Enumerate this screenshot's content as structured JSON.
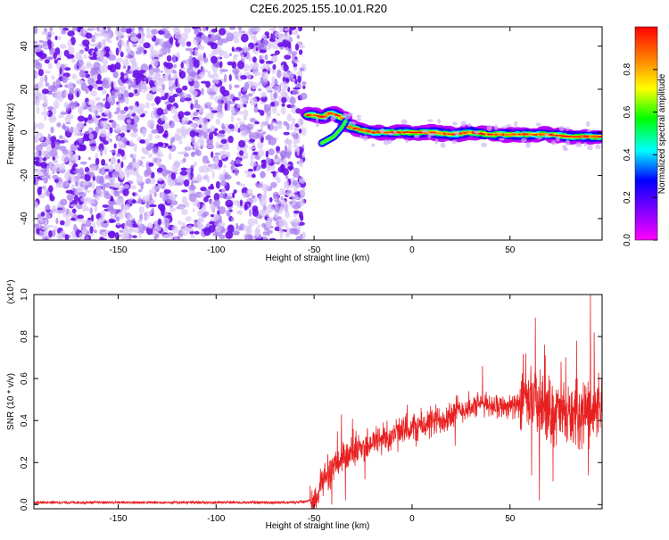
{
  "title": "C2E6.2025.155.10.01.R20",
  "chart_data": [
    {
      "type": "heatmap",
      "xlabel": "Height of straight line (km)",
      "ylabel": "Frequency (Hz)",
      "xlim": [
        -193,
        97
      ],
      "ylim": [
        -50,
        49
      ],
      "xticks": [
        -150,
        -100,
        -50,
        0,
        50
      ],
      "yticks": [
        -40,
        -20,
        0,
        20,
        40
      ],
      "colorbar": {
        "label": "Normalized spectral amplitude",
        "ticks": [
          "0.0",
          "0.2",
          "0.4",
          "0.6",
          "0.8"
        ],
        "range": [
          0,
          1
        ],
        "colors": [
          "#ff00ff",
          "#8000ff",
          "#0000ff",
          "#00ffff",
          "#00ff00",
          "#ffff00",
          "#ff8000",
          "#ff0000"
        ]
      },
      "noise_region": {
        "x_range": [
          -193,
          -55
        ],
        "max_amplitude": 0.15
      },
      "signal_track": [
        {
          "x": -53,
          "y": 8
        },
        {
          "x": -50,
          "y": 8
        },
        {
          "x": -45,
          "y": 7
        },
        {
          "x": -42,
          "y": 9
        },
        {
          "x": -38,
          "y": 8
        },
        {
          "x": -35,
          "y": 6
        },
        {
          "x": -33,
          "y": 3
        },
        {
          "x": -30,
          "y": 2
        },
        {
          "x": -25,
          "y": 1
        },
        {
          "x": -20,
          "y": 0
        },
        {
          "x": -10,
          "y": 0
        },
        {
          "x": 0,
          "y": 0
        },
        {
          "x": 10,
          "y": 0
        },
        {
          "x": 20,
          "y": -1
        },
        {
          "x": 30,
          "y": 0
        },
        {
          "x": 40,
          "y": -1
        },
        {
          "x": 50,
          "y": -1
        },
        {
          "x": 60,
          "y": -1
        },
        {
          "x": 70,
          "y": -1
        },
        {
          "x": 80,
          "y": -2
        },
        {
          "x": 90,
          "y": -2
        },
        {
          "x": 97,
          "y": -2
        }
      ],
      "secondary_track": [
        {
          "x": -46,
          "y": -5
        },
        {
          "x": -40,
          "y": -2
        },
        {
          "x": -36,
          "y": 2
        },
        {
          "x": -34,
          "y": 5
        }
      ]
    },
    {
      "type": "line",
      "xlabel": "Height of straight line (km)",
      "ylabel": "SNR (10 * v/v)",
      "multiplier": "(x10⁴)",
      "xlim": [
        -193,
        97
      ],
      "ylim": [
        -0.02,
        1.0
      ],
      "xticks": [
        -150,
        -100,
        -50,
        0,
        50
      ],
      "yticks": [
        "0.0",
        "0.2",
        "0.4",
        "0.6",
        "0.8",
        "1.0"
      ],
      "series_color": "#e82020",
      "profile": [
        {
          "x": -193,
          "y": 0.01
        },
        {
          "x": -60,
          "y": 0.01
        },
        {
          "x": -50,
          "y": 0.02
        },
        {
          "x": -45,
          "y": 0.12
        },
        {
          "x": -40,
          "y": 0.18
        },
        {
          "x": -35,
          "y": 0.22
        },
        {
          "x": -30,
          "y": 0.25
        },
        {
          "x": -20,
          "y": 0.3
        },
        {
          "x": -10,
          "y": 0.33
        },
        {
          "x": 0,
          "y": 0.36
        },
        {
          "x": 10,
          "y": 0.39
        },
        {
          "x": 20,
          "y": 0.43
        },
        {
          "x": 25,
          "y": 0.45
        },
        {
          "x": 30,
          "y": 0.46
        },
        {
          "x": 35,
          "y": 0.48
        },
        {
          "x": 45,
          "y": 0.47
        },
        {
          "x": 55,
          "y": 0.47
        },
        {
          "x": 60,
          "y": 0.5
        },
        {
          "x": 70,
          "y": 0.45
        },
        {
          "x": 80,
          "y": 0.42
        },
        {
          "x": 90,
          "y": 0.45
        },
        {
          "x": 97,
          "y": 0.48
        }
      ],
      "peaks": [
        {
          "x": -43,
          "y": 0.24
        },
        {
          "x": -36,
          "y": 0.43
        },
        {
          "x": -30,
          "y": 0.36
        },
        {
          "x": 29,
          "y": 0.54
        },
        {
          "x": 36,
          "y": 0.66
        },
        {
          "x": 58,
          "y": 0.72
        },
        {
          "x": 63,
          "y": 0.89
        },
        {
          "x": 68,
          "y": 0.71
        },
        {
          "x": 76,
          "y": 0.68
        },
        {
          "x": 84,
          "y": 0.78
        },
        {
          "x": 91,
          "y": 1.0
        },
        {
          "x": 93,
          "y": 0.82
        }
      ],
      "troughs": [
        {
          "x": -41,
          "y": 0.0
        },
        {
          "x": -34,
          "y": 0.02
        },
        {
          "x": -24,
          "y": 0.12
        },
        {
          "x": 22,
          "y": 0.28
        },
        {
          "x": 61,
          "y": 0.14
        },
        {
          "x": 65,
          "y": 0.02
        },
        {
          "x": 72,
          "y": 0.11
        },
        {
          "x": 90,
          "y": 0.14
        }
      ]
    }
  ]
}
